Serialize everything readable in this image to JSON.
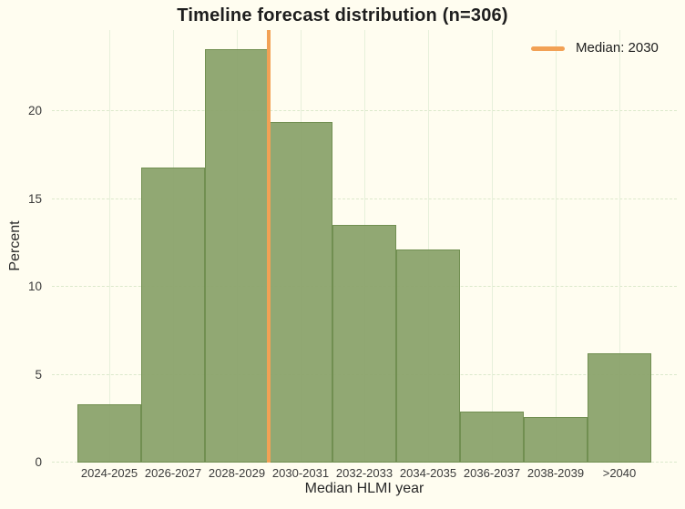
{
  "chart_data": {
    "type": "bar",
    "title": "Timeline forecast distribution (n=306)",
    "n": 306,
    "xlabel": "Median HLMI year",
    "ylabel": "Percent",
    "categories": [
      "2024-2025",
      "2026-2027",
      "2028-2029",
      "2030-2031",
      "2032-2033",
      "2034-2035",
      "2036-2037",
      "2038-2039",
      ">2040"
    ],
    "values": [
      3.3,
      16.8,
      23.5,
      19.4,
      13.5,
      12.1,
      2.9,
      2.6,
      6.2
    ],
    "yticks": [
      0,
      5,
      10,
      15,
      20
    ],
    "ylim": [
      0,
      24.6
    ],
    "grid": true,
    "legend_position": "top-right",
    "median_line": {
      "label": "Median: 2030",
      "boundary_index": 3
    },
    "colors": {
      "background": "#FFFDF0",
      "bar_fill": "#8CA46D",
      "bar_border": "#6A8A49",
      "median": "#F2A155",
      "grid_horizontal": "#DCE9CC",
      "grid_vertical": "#E7F0DB"
    }
  }
}
